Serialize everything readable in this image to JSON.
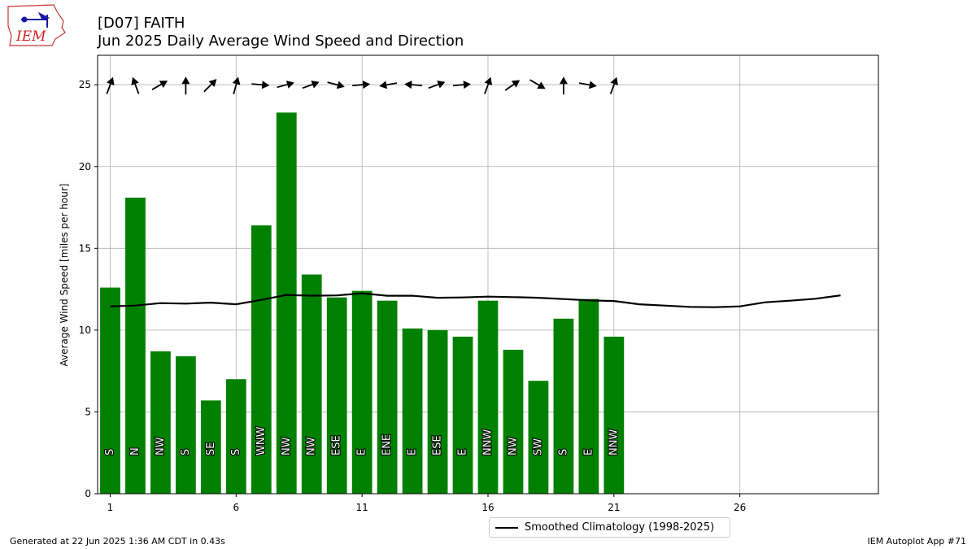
{
  "header": {
    "title_line1": "[D07] FAITH",
    "title_line2": "Jun 2025 Daily Average Wind Speed and Direction"
  },
  "logo": {
    "text": "IEM",
    "icon": "iem-weather-station-logo"
  },
  "footer": {
    "left": "Generated at 22 Jun 2025 1:36 AM CDT in 0.43s",
    "right": "IEM Autoplot App #71"
  },
  "legend": {
    "label": "Smoothed Climatology (1998-2025)"
  },
  "colors": {
    "bar": "#008000",
    "climo": "#000000",
    "grid": "#b0b0b0"
  },
  "chart_data": {
    "type": "bar",
    "ylabel": "Average Wind Speed [miles per hour]",
    "xlabel": "",
    "xlim": [
      0.5,
      31.5
    ],
    "ylim": [
      0,
      26.8
    ],
    "x_ticks": [
      1,
      6,
      11,
      16,
      21,
      26
    ],
    "y_ticks": [
      0,
      5,
      10,
      15,
      20,
      25
    ],
    "grid": true,
    "legend_position": "bottom-center, below axes",
    "days": [
      1,
      2,
      3,
      4,
      5,
      6,
      7,
      8,
      9,
      10,
      11,
      12,
      13,
      14,
      15,
      16,
      17,
      18,
      19,
      20,
      21
    ],
    "speeds": [
      12.6,
      18.1,
      8.7,
      8.4,
      5.7,
      7.0,
      16.4,
      23.3,
      13.4,
      12.0,
      12.4,
      11.8,
      10.1,
      10.0,
      9.6,
      11.8,
      8.8,
      6.9,
      10.7,
      11.9,
      9.6
    ],
    "directions": [
      "S",
      "N",
      "NW",
      "S",
      "SE",
      "S",
      "WNW",
      "NW",
      "NW",
      "ESE",
      "E",
      "ENE",
      "E",
      "ESE",
      "E",
      "NNW",
      "NW",
      "SW",
      "S",
      "E",
      "NNW"
    ],
    "arrow_angles_deg": [
      290,
      250,
      330,
      270,
      315,
      285,
      5,
      345,
      340,
      15,
      355,
      170,
      185,
      340,
      355,
      290,
      325,
      30,
      270,
      10,
      290
    ],
    "climatology": {
      "name": "Smoothed Climatology (1998-2025)",
      "days": [
        1,
        2,
        3,
        4,
        5,
        6,
        7,
        8,
        9,
        10,
        11,
        12,
        13,
        14,
        15,
        16,
        17,
        18,
        19,
        20,
        21,
        22,
        23,
        24,
        25,
        26,
        27,
        28,
        29,
        30
      ],
      "values": [
        11.45,
        11.5,
        11.65,
        11.62,
        11.68,
        11.58,
        11.85,
        12.15,
        12.1,
        12.12,
        12.25,
        12.1,
        12.1,
        11.98,
        12.0,
        12.05,
        12.02,
        11.98,
        11.9,
        11.82,
        11.78,
        11.58,
        11.5,
        11.42,
        11.4,
        11.45,
        11.7,
        11.8,
        11.92,
        12.12
      ]
    }
  }
}
